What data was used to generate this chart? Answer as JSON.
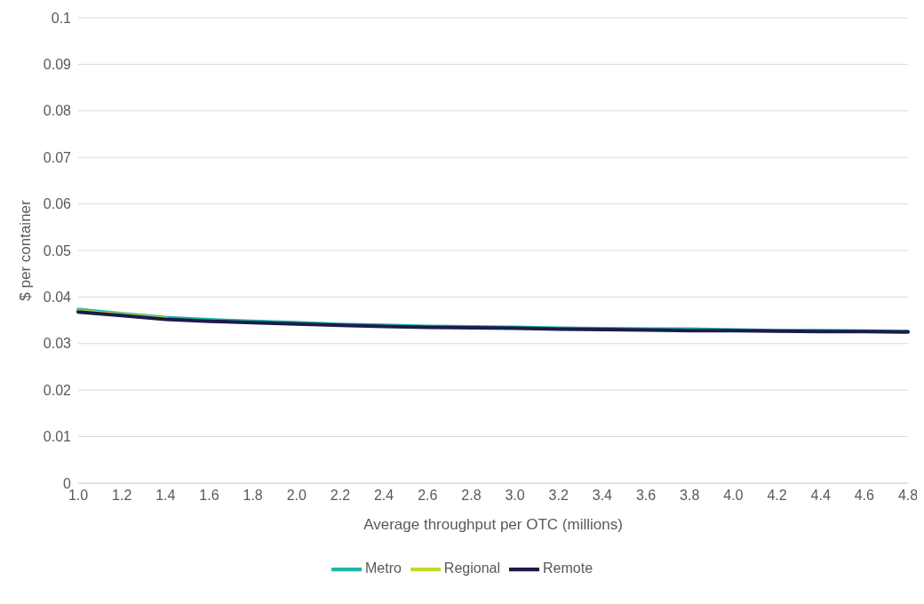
{
  "chart_data": {
    "type": "line",
    "xlabel": "Average throughput per OTC (millions)",
    "ylabel": "$ per container",
    "categories": [
      "1.0",
      "1.2",
      "1.4",
      "1.6",
      "1.8",
      "2.0",
      "2.2",
      "2.4",
      "2.6",
      "2.8",
      "3.0",
      "3.2",
      "3.4",
      "3.6",
      "3.8",
      "4.0",
      "4.2",
      "4.4",
      "4.6",
      "4.8"
    ],
    "series": [
      {
        "name": "Metro",
        "color": "#1fb5a8",
        "values": [
          0.0373,
          0.0364,
          0.0356,
          0.0351,
          0.0348,
          0.0345,
          0.0341,
          0.0339,
          0.0337,
          0.0336,
          0.0335,
          0.0333,
          0.0332,
          0.0331,
          0.0331,
          0.0329,
          0.0328,
          0.0328,
          0.0327,
          0.0326
        ]
      },
      {
        "name": "Regional",
        "color": "#c5d82a",
        "values": [
          0.037,
          0.0362,
          0.0354,
          null,
          null,
          null,
          null,
          null,
          null,
          null,
          null,
          null,
          null,
          null,
          null,
          null,
          null,
          null,
          null,
          null
        ]
      },
      {
        "name": "Remote",
        "color": "#1c1b4b",
        "values": [
          0.0368,
          0.036,
          0.0352,
          0.0348,
          0.0345,
          0.0342,
          0.0339,
          0.0337,
          0.0335,
          0.0334,
          0.0333,
          0.0331,
          0.033,
          0.0329,
          0.0328,
          0.0328,
          0.0327,
          0.0326,
          0.0326,
          0.0325
        ]
      }
    ],
    "ylim": [
      0,
      0.1
    ],
    "yticks": [
      0,
      0.01,
      0.02,
      0.03,
      0.04,
      0.05,
      0.06,
      0.07,
      0.08,
      0.09,
      0.1
    ],
    "grid": "y",
    "legend": "bottom",
    "marker": "none",
    "line_style": "solid"
  }
}
